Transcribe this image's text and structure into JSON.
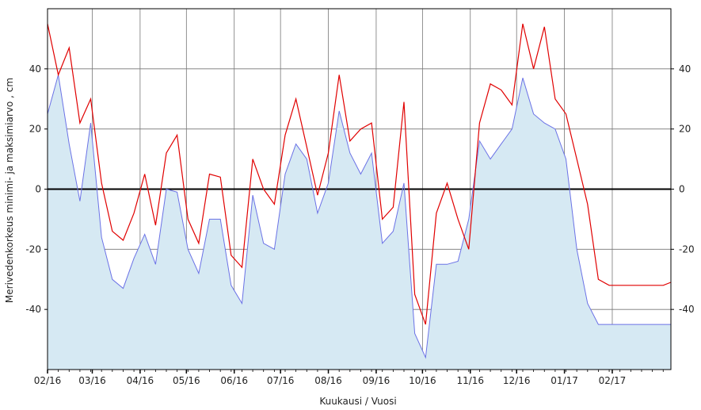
{
  "chart_data": {
    "type": "area",
    "xlabel": "Kuukausi / Vuosi",
    "ylabel": "Merivedenkorkeus minimi- ja maksimiarvo , cm",
    "ylim": [
      -60,
      60
    ],
    "xlim": [
      "2016-02-01",
      "2017-03-11"
    ],
    "y_ticks": [
      40,
      20,
      0,
      -20,
      -40
    ],
    "x_tick_labels": [
      "02/16",
      "03/16",
      "04/16",
      "05/16",
      "06/16",
      "07/16",
      "08/16",
      "09/16",
      "10/16",
      "11/16",
      "12/16",
      "01/17",
      "02/17"
    ],
    "x_tick_dates": [
      "2016-02-01",
      "2016-03-01",
      "2016-04-01",
      "2016-05-01",
      "2016-06-01",
      "2016-07-01",
      "2016-08-01",
      "2016-09-01",
      "2016-10-01",
      "2016-11-01",
      "2016-12-01",
      "2017-01-01",
      "2017-02-01"
    ],
    "grid": true,
    "zero_line": true,
    "colors": {
      "max": "#e00000",
      "min": "#6b72e6",
      "fill": "#d6e9f3",
      "grid": "#777777",
      "zero": "#000000"
    },
    "x": [
      "2016-02-01",
      "2016-02-08",
      "2016-02-15",
      "2016-02-22",
      "2016-02-29",
      "2016-03-07",
      "2016-03-14",
      "2016-03-21",
      "2016-03-28",
      "2016-04-04",
      "2016-04-11",
      "2016-04-18",
      "2016-04-25",
      "2016-05-02",
      "2016-05-09",
      "2016-05-16",
      "2016-05-23",
      "2016-05-30",
      "2016-06-06",
      "2016-06-13",
      "2016-06-20",
      "2016-06-27",
      "2016-07-04",
      "2016-07-11",
      "2016-07-18",
      "2016-07-25",
      "2016-08-01",
      "2016-08-08",
      "2016-08-15",
      "2016-08-22",
      "2016-08-29",
      "2016-09-05",
      "2016-09-12",
      "2016-09-19",
      "2016-09-26",
      "2016-10-03",
      "2016-10-10",
      "2016-10-17",
      "2016-10-24",
      "2016-10-31",
      "2016-11-07",
      "2016-11-14",
      "2016-11-21",
      "2016-11-28",
      "2016-12-05",
      "2016-12-12",
      "2016-12-19",
      "2016-12-26",
      "2017-01-02",
      "2017-01-09",
      "2017-01-16",
      "2017-01-23",
      "2017-01-30",
      "2017-02-06",
      "2017-02-13",
      "2017-02-20",
      "2017-02-27",
      "2017-03-06",
      "2017-03-11"
    ],
    "series": [
      {
        "role": "max",
        "values": [
          55,
          38,
          47,
          22,
          30,
          2,
          -14,
          -17,
          -8,
          5,
          -12,
          12,
          18,
          -10,
          -18,
          5,
          4,
          -22,
          -26,
          10,
          0,
          -5,
          18,
          30,
          14,
          -2,
          12,
          38,
          16,
          20,
          22,
          -10,
          -6,
          29,
          -35,
          -45,
          -8,
          2,
          -10,
          -20,
          22,
          35,
          33,
          28,
          55,
          40,
          54,
          30,
          25,
          10,
          -5,
          -30,
          -32,
          -32,
          -32,
          -32,
          -32,
          -32,
          -31
        ]
      },
      {
        "role": "min",
        "values": [
          25,
          38,
          15,
          -4,
          22,
          -16,
          -30,
          -33,
          -23,
          -15,
          -25,
          0,
          -1,
          -20,
          -28,
          -10,
          -10,
          -32,
          -38,
          -2,
          -18,
          -20,
          5,
          15,
          10,
          -8,
          2,
          26,
          12,
          5,
          12,
          -18,
          -14,
          2,
          -48,
          -56,
          -25,
          -25,
          -24,
          -10,
          16,
          10,
          15,
          20,
          37,
          25,
          22,
          20,
          10,
          -20,
          -38,
          -45,
          -45,
          -45,
          -45,
          -45,
          -45,
          -45,
          -45
        ]
      }
    ]
  }
}
